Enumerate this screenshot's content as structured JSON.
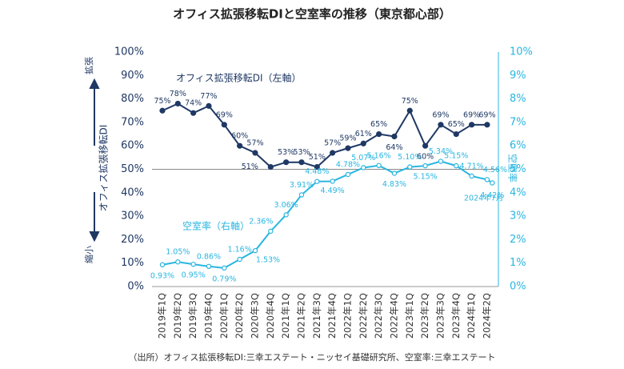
{
  "chart_data": {
    "type": "line",
    "title": "オフィス拡張移転DIと空室率の推移（東京都心部）",
    "categories": [
      "2019年1Q",
      "2019年2Q",
      "2019年3Q",
      "2019年4Q",
      "2020年1Q",
      "2020年2Q",
      "2020年3Q",
      "2020年4Q",
      "2021年1Q",
      "2021年2Q",
      "2021年3Q",
      "2021年4Q",
      "2022年1Q",
      "2022年2Q",
      "2022年3Q",
      "2022年4Q",
      "2023年1Q",
      "2023年2Q",
      "2023年3Q",
      "2023年4Q",
      "2024年1Q",
      "2024年2Q",
      null
    ],
    "series": [
      {
        "name": "オフィス拡張移転DI（左軸）",
        "color": "#1f3864",
        "values": [
          75,
          78,
          74,
          77,
          69,
          60,
          57,
          51,
          53,
          53,
          51,
          57,
          59,
          61,
          65,
          64,
          75,
          60,
          69,
          65,
          69,
          69,
          null
        ],
        "value_labels": [
          "75%",
          "78%",
          "74%",
          "77%",
          "69%",
          "60%",
          "57%",
          "51%",
          "53%",
          "53%",
          "51%",
          "57%",
          "59%",
          "61%",
          "65%",
          "64%",
          "75%",
          "60%",
          "69%",
          "65%",
          "69%",
          "69%",
          null
        ]
      },
      {
        "name": "空室率（右軸）",
        "color": "#29b6e0",
        "axis": "y2",
        "values": [
          0.93,
          1.05,
          0.95,
          0.86,
          0.79,
          1.16,
          1.53,
          2.36,
          3.06,
          3.91,
          4.48,
          4.49,
          4.78,
          5.07,
          5.16,
          4.83,
          5.1,
          5.15,
          5.34,
          5.15,
          4.71,
          4.56,
          4.42
        ],
        "value_labels": [
          "0.93%",
          "1.05%",
          "0.95%",
          "0.86%",
          "0.79%",
          "1.16%",
          "1.53%",
          "2.36%",
          "3.06%",
          "3.91%",
          "4.48%",
          "4.49%",
          "4.78%",
          "5.07%",
          "5.16%",
          "4.83%",
          "5.10%",
          "5.15%",
          "5.34%",
          "5.15%",
          "4.71%",
          "4.56%",
          "4.42%"
        ]
      }
    ],
    "ylim": [
      0,
      100
    ],
    "yticks": [
      {
        "value": 0,
        "label": "0%"
      },
      {
        "value": 10,
        "label": "10%"
      },
      {
        "value": 20,
        "label": "20%"
      },
      {
        "value": 30,
        "label": "30%"
      },
      {
        "value": 40,
        "label": "40%"
      },
      {
        "value": 50,
        "label": "50%"
      },
      {
        "value": 60,
        "label": "60%"
      },
      {
        "value": 70,
        "label": "70%"
      },
      {
        "value": 80,
        "label": "80%"
      },
      {
        "value": 90,
        "label": "90%"
      },
      {
        "value": 100,
        "label": "100%"
      }
    ],
    "y2lim": [
      0,
      10
    ],
    "y2ticks": [
      {
        "value": 0,
        "label": "0%"
      },
      {
        "value": 1,
        "label": "1%"
      },
      {
        "value": 2,
        "label": "2%"
      },
      {
        "value": 3,
        "label": "3%"
      },
      {
        "value": 4,
        "label": "4%"
      },
      {
        "value": 5,
        "label": "5%"
      },
      {
        "value": 6,
        "label": "6%"
      },
      {
        "value": 7,
        "label": "7%"
      },
      {
        "value": 8,
        "label": "8%"
      },
      {
        "value": 9,
        "label": "9%"
      },
      {
        "value": 10,
        "label": "10%"
      }
    ],
    "reference_line": 50,
    "ylabel": "オフィス拡張移転DI",
    "y2label": "空室率",
    "ylabel_top": "拡張",
    "ylabel_bottom": "縮小",
    "annotation": "2024年7月",
    "source": "（出所）オフィス拡張移転DI:三幸エステート・ニッセイ基礎研究所、空室率:三幸エステート"
  }
}
